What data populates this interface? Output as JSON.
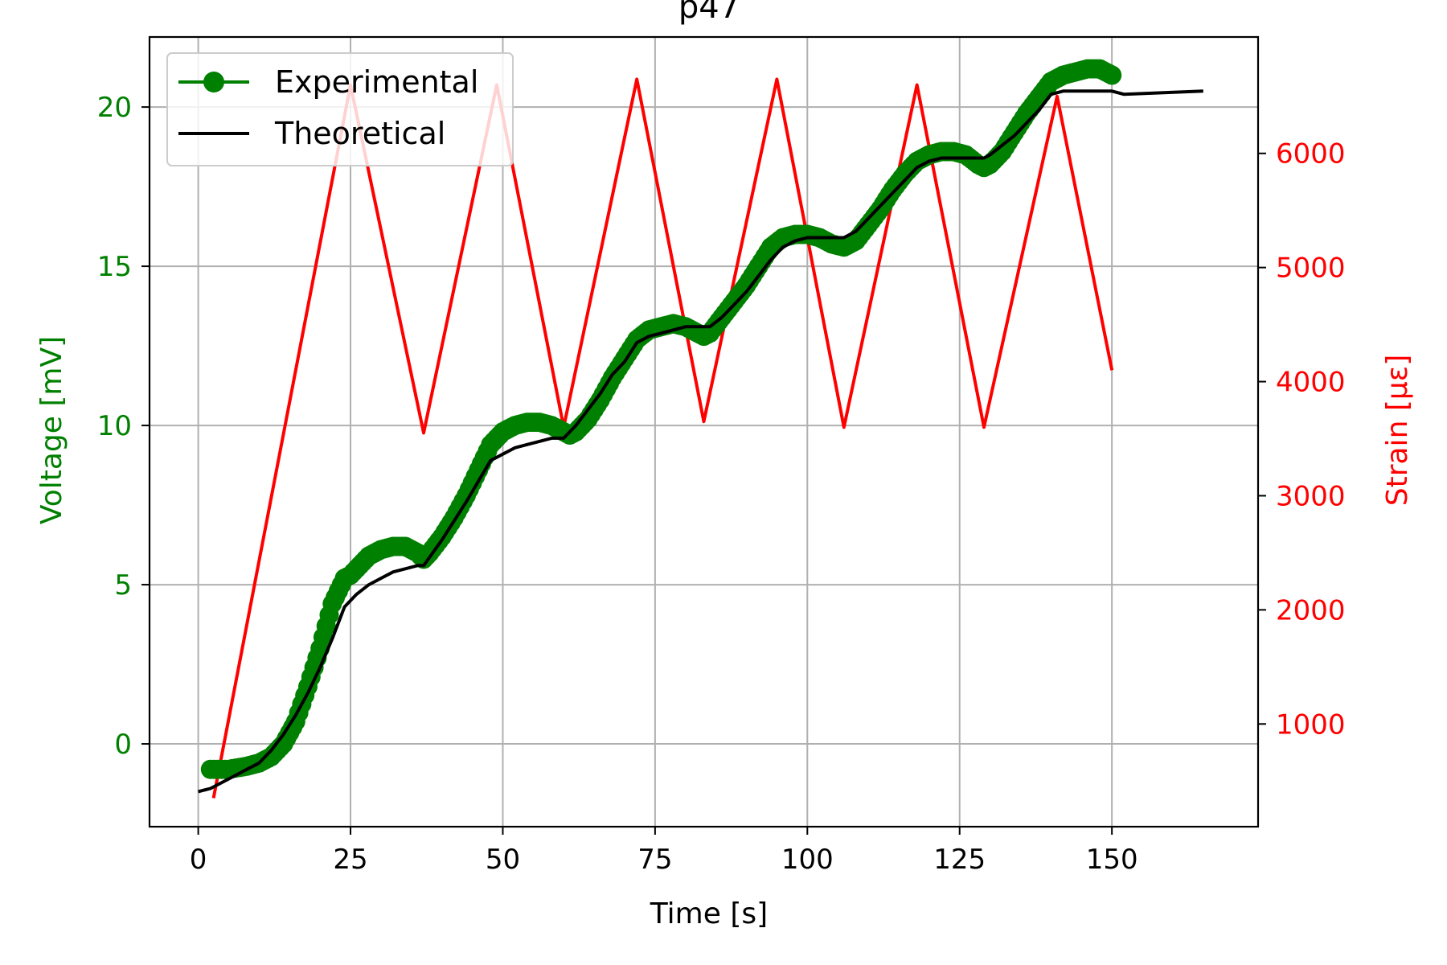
{
  "chart_data": {
    "type": "line",
    "title": "p47",
    "xlabel": "Time [s]",
    "ylabel_left": "Voltage [mV]",
    "ylabel_right": "Strain [με]",
    "xlim": [
      -8,
      174
    ],
    "ylim_left": [
      -2.6,
      22.2
    ],
    "ylim_right": [
      100,
      7020
    ],
    "x_ticks": [
      0,
      25,
      50,
      75,
      100,
      125,
      150
    ],
    "y_left_ticks": [
      0,
      5,
      10,
      15,
      20
    ],
    "y_right_ticks": [
      1000,
      2000,
      3000,
      4000,
      5000,
      6000
    ],
    "grid": true,
    "legend_position": "upper-left",
    "colors": {
      "experimental": "#008000",
      "theoretical": "#000000",
      "strain": "#ff0000",
      "left_axis": "#008000",
      "right_axis": "#ff0000",
      "grid": "#b0b0b0"
    },
    "series": [
      {
        "name": "Experimental",
        "axis": "left",
        "style": "marker-line",
        "x": [
          2,
          5,
          8,
          10,
          12,
          14,
          16,
          18,
          20,
          22,
          24,
          25,
          26,
          28,
          30,
          32,
          34,
          36,
          37,
          38,
          40,
          42,
          44,
          46,
          48,
          49,
          50,
          52,
          54,
          56,
          58,
          60,
          61,
          62,
          64,
          66,
          68,
          70,
          72,
          74,
          76,
          78,
          80,
          82,
          83,
          84,
          86,
          88,
          90,
          92,
          94,
          96,
          98,
          100,
          102,
          104,
          106,
          108,
          110,
          112,
          114,
          116,
          118,
          120,
          122,
          124,
          126,
          128,
          129,
          130,
          132,
          134,
          136,
          138,
          140,
          142,
          144,
          146,
          148,
          150
        ],
        "y": [
          -0.8,
          -0.8,
          -0.7,
          -0.6,
          -0.4,
          0.0,
          0.7,
          1.8,
          3.0,
          4.4,
          5.2,
          5.3,
          5.5,
          5.9,
          6.1,
          6.2,
          6.2,
          6.0,
          5.8,
          6.0,
          6.5,
          7.1,
          7.8,
          8.6,
          9.4,
          9.6,
          9.8,
          10.0,
          10.1,
          10.1,
          10.0,
          9.8,
          9.7,
          9.8,
          10.2,
          10.8,
          11.5,
          12.1,
          12.7,
          13.0,
          13.1,
          13.2,
          13.1,
          12.9,
          12.8,
          12.9,
          13.4,
          13.9,
          14.4,
          15.0,
          15.6,
          15.9,
          16.0,
          16.0,
          15.9,
          15.7,
          15.6,
          15.8,
          16.3,
          16.8,
          17.4,
          17.9,
          18.3,
          18.5,
          18.6,
          18.6,
          18.5,
          18.2,
          18.1,
          18.2,
          18.6,
          19.2,
          19.8,
          20.3,
          20.8,
          21.0,
          21.1,
          21.2,
          21.2,
          21.0
        ]
      },
      {
        "name": "Theoretical",
        "axis": "left",
        "style": "line",
        "x": [
          0,
          2,
          5,
          8,
          10,
          12,
          14,
          16,
          18,
          20,
          22,
          24,
          26,
          28,
          30,
          32,
          34,
          36,
          37,
          40,
          44,
          48,
          49,
          50,
          52,
          54,
          56,
          58,
          60,
          62,
          64,
          66,
          68,
          70,
          72,
          74,
          76,
          78,
          80,
          82,
          84,
          86,
          88,
          90,
          92,
          94,
          96,
          98,
          100,
          102,
          104,
          106,
          108,
          110,
          112,
          114,
          116,
          118,
          120,
          122,
          124,
          126,
          128,
          129,
          130,
          132,
          134,
          136,
          138,
          140,
          142,
          144,
          146,
          148,
          150,
          152,
          165
        ],
        "y": [
          -1.5,
          -1.4,
          -1.1,
          -0.8,
          -0.6,
          -0.2,
          0.3,
          0.9,
          1.6,
          2.4,
          3.3,
          4.3,
          4.7,
          5.0,
          5.2,
          5.4,
          5.5,
          5.6,
          5.6,
          6.4,
          7.6,
          8.9,
          9.0,
          9.1,
          9.3,
          9.4,
          9.5,
          9.6,
          9.6,
          10.0,
          10.5,
          11.0,
          11.6,
          12.0,
          12.6,
          12.8,
          12.9,
          13.0,
          13.1,
          13.1,
          13.1,
          13.4,
          13.8,
          14.2,
          14.7,
          15.2,
          15.6,
          15.8,
          15.9,
          15.9,
          15.9,
          15.9,
          16.1,
          16.5,
          16.9,
          17.3,
          17.7,
          18.1,
          18.3,
          18.4,
          18.4,
          18.4,
          18.4,
          18.4,
          18.5,
          18.8,
          19.1,
          19.5,
          19.9,
          20.4,
          20.5,
          20.5,
          20.5,
          20.5,
          20.5,
          20.4,
          20.5
        ]
      },
      {
        "name": "Strain",
        "axis": "right",
        "style": "line",
        "x": [
          2.5,
          25,
          37,
          49,
          60,
          72,
          83,
          95,
          106,
          118,
          129,
          141,
          150
        ],
        "y": [
          350,
          6600,
          3550,
          6600,
          3600,
          6650,
          3650,
          6650,
          3600,
          6600,
          3600,
          6500,
          4100
        ]
      }
    ]
  }
}
